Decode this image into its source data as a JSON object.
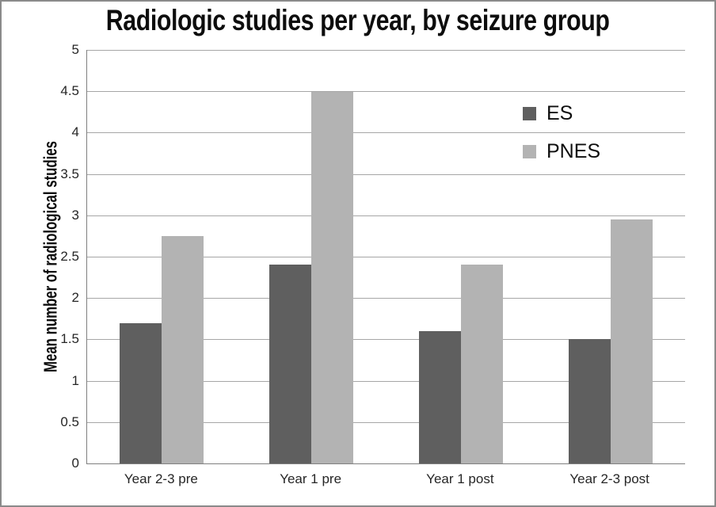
{
  "chart_data": {
    "type": "bar",
    "title": "Radiologic studies per year, by seizure group",
    "ylabel": "Mean number of radiological studies",
    "xlabel": "",
    "categories": [
      "Year 2-3 pre",
      "Year 1 pre",
      "Year 1 post",
      "Year 2-3 post"
    ],
    "series": [
      {
        "name": "ES",
        "color": "#5f5f5f",
        "values": [
          1.7,
          2.4,
          1.6,
          1.5
        ]
      },
      {
        "name": "PNES",
        "color": "#b3b3b3",
        "values": [
          2.75,
          4.49,
          2.4,
          2.95
        ]
      }
    ],
    "ylim": [
      0,
      5
    ],
    "ytick_step": 0.5,
    "ytick_labels": [
      "0",
      "0.5",
      "1",
      "1.5",
      "2",
      "2.5",
      "3",
      "3.5",
      "4",
      "4.5",
      "5"
    ],
    "grid": true,
    "legend_position": "upper-right-inside",
    "colors": {
      "gridline": "#a6a6a6",
      "axis_line": "#7f7f7f",
      "frame_border": "#8a8a8a",
      "text": "#0d0d0d"
    }
  }
}
